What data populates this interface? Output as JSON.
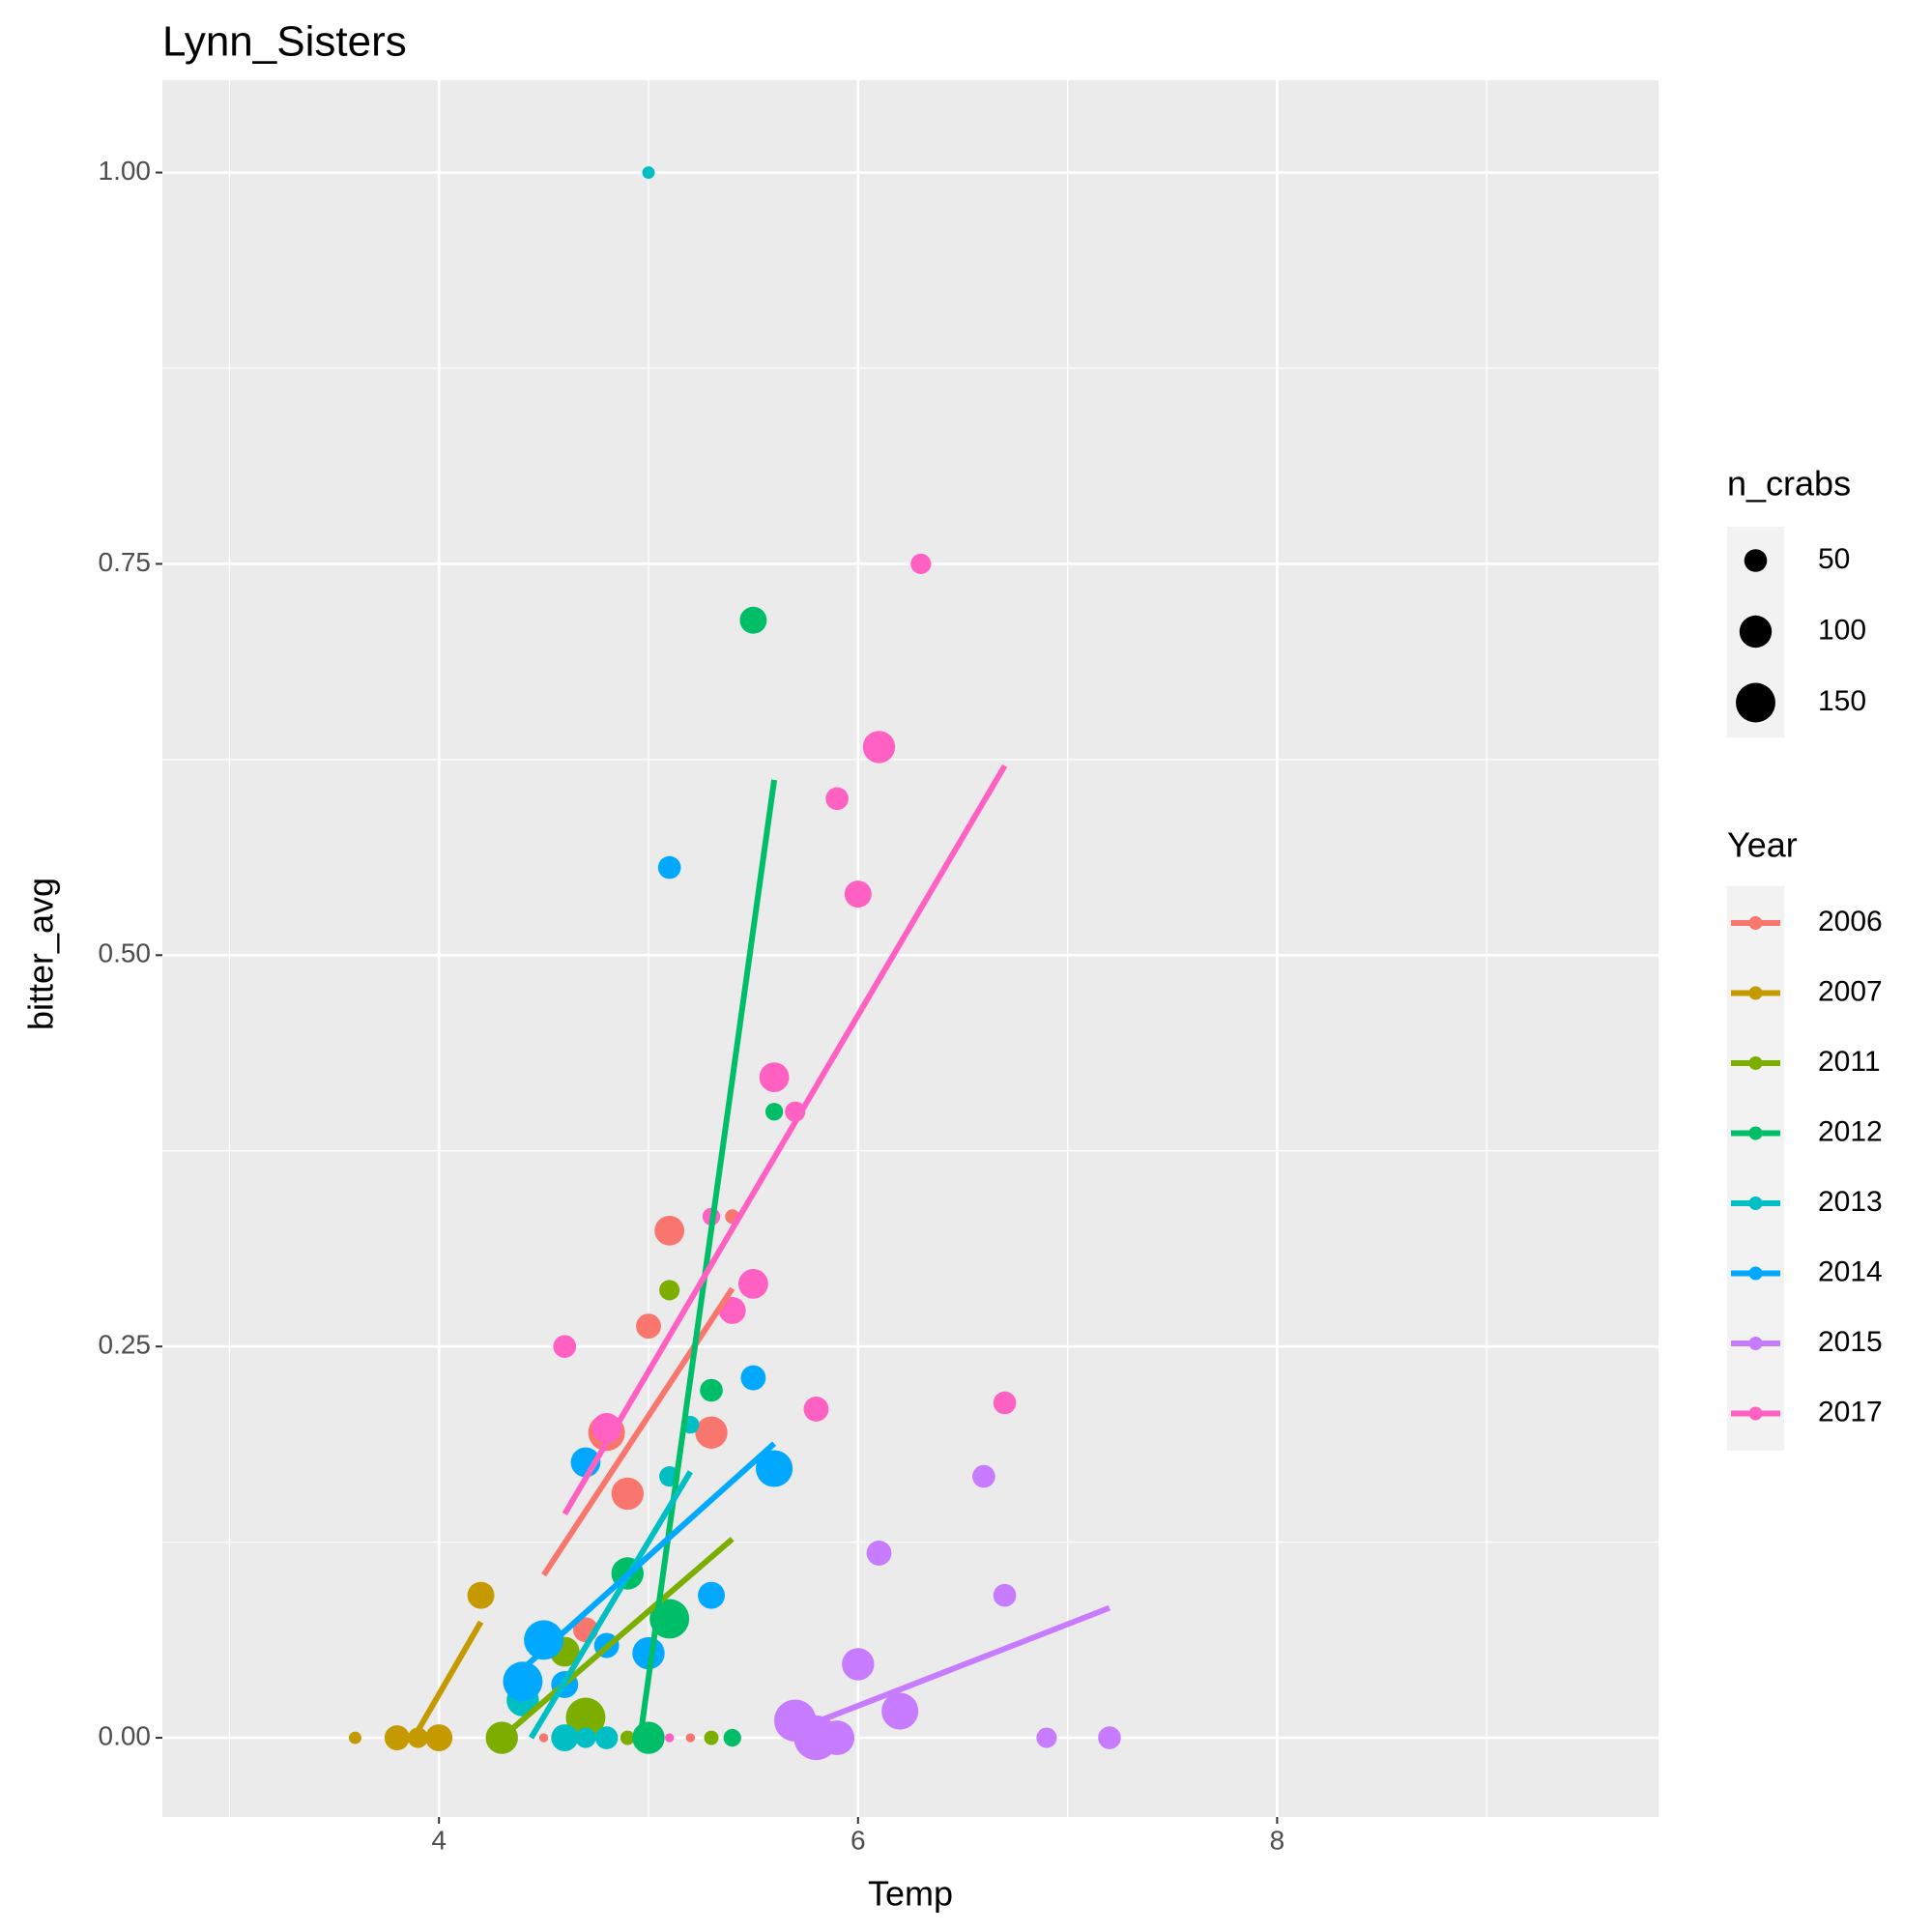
{
  "chart_data": {
    "type": "scatter",
    "title": "Lynn_Sisters",
    "x_label": "Temp",
    "y_label": "bitter_avg",
    "xlim": [
      2.68,
      9.82
    ],
    "ylim": [
      -0.0506,
      1.059
    ],
    "xticks": [
      4,
      6,
      8
    ],
    "x_minor": [
      3,
      5,
      7,
      9
    ],
    "yticks": [
      {
        "value": 0,
        "label": "0.00"
      },
      {
        "value": 0.25,
        "label": "0.25"
      },
      {
        "value": 0.5,
        "label": "0.50"
      },
      {
        "value": 0.75,
        "label": "0.75"
      },
      {
        "value": 1,
        "label": "1.00"
      }
    ],
    "y_minor": [
      0.125,
      0.375,
      0.625,
      0.875
    ],
    "grid": true,
    "size_legend_title": "n_crabs",
    "size_breaks": [
      50,
      100,
      150
    ],
    "legend_title": "Year",
    "series": [
      {
        "name": "2006",
        "color": "#F8766D",
        "x": [
          5.4,
          5.1,
          5.0,
          5.3,
          4.8,
          4.9,
          4.7,
          4.5,
          5.2
        ],
        "y": [
          0.333,
          0.324,
          0.263,
          0.195,
          0.195,
          0.156,
          0.069,
          0,
          0
        ],
        "size": [
          20,
          85,
          60,
          100,
          130,
          100,
          60,
          8,
          8
        ],
        "trend": {
          "x": [
            4.5,
            5.4
          ],
          "y": [
            0.104,
            0.287
          ]
        }
      },
      {
        "name": "2007",
        "color": "#C49A00",
        "x": [
          3.6,
          3.8,
          3.9,
          4.0,
          4.2
        ],
        "y": [
          0,
          0,
          0,
          0,
          0.091
        ],
        "size": [
          15,
          60,
          40,
          70,
          70
        ],
        "trend": {
          "x": [
            3.88,
            4.2
          ],
          "y": [
            0,
            0.074
          ]
        }
      },
      {
        "name": "2011",
        "color": "#7CAE00",
        "x": [
          4.3,
          4.7,
          4.6,
          5.1,
          4.9,
          5.3
        ],
        "y": [
          0,
          0.013,
          0.055,
          0.286,
          0,
          0
        ],
        "size": [
          100,
          150,
          85,
          40,
          20,
          20
        ],
        "trend": {
          "x": [
            4.3,
            5.4
          ],
          "y": [
            0,
            0.127
          ]
        }
      },
      {
        "name": "2012",
        "color": "#00BE67",
        "x": [
          5.0,
          5.1,
          4.9,
          5.3,
          5.6,
          5.5,
          5.4
        ],
        "y": [
          0,
          0.076,
          0.105,
          0.222,
          0.4,
          0.714,
          0
        ],
        "size": [
          100,
          150,
          100,
          50,
          30,
          70,
          30
        ],
        "trend": {
          "x": [
            4.96,
            5.6
          ],
          "y": [
            0,
            0.612
          ]
        }
      },
      {
        "name": "2013",
        "color": "#00BFC4",
        "x": [
          5.0,
          4.6,
          4.7,
          4.8,
          4.4,
          5.1,
          5.2
        ],
        "y": [
          1.0,
          0,
          0,
          0,
          0.024,
          0.167,
          0.2
        ],
        "size": [
          15,
          70,
          40,
          50,
          100,
          40,
          30
        ],
        "trend": {
          "x": [
            4.44,
            5.2
          ],
          "y": [
            0,
            0.17
          ]
        }
      },
      {
        "name": "2014",
        "color": "#00A9FF",
        "x": [
          5.1,
          5.5,
          5.6,
          4.7,
          5.3,
          4.8,
          5.0,
          4.5,
          4.4,
          4.6
        ],
        "y": [
          0.556,
          0.23,
          0.172,
          0.176,
          0.091,
          0.059,
          0.054,
          0.0625,
          0.036,
          0.034
        ],
        "size": [
          50,
          60,
          130,
          85,
          70,
          60,
          100,
          150,
          150,
          70
        ],
        "trend": {
          "x": [
            4.4,
            5.6
          ],
          "y": [
            0.044,
            0.188
          ]
        }
      },
      {
        "name": "2015",
        "color": "#C77CFF",
        "x": [
          5.7,
          5.8,
          5.9,
          6.0,
          6.2,
          6.1,
          6.6,
          6.7,
          6.9,
          7.2
        ],
        "y": [
          0.011,
          0,
          0,
          0.047,
          0.017,
          0.118,
          0.167,
          0.091,
          0,
          0
        ],
        "size": [
          170,
          190,
          115,
          100,
          130,
          60,
          50,
          50,
          40,
          50
        ],
        "trend": {
          "x": [
            5.8,
            7.2
          ],
          "y": [
            0.01,
            0.083
          ]
        }
      },
      {
        "name": "2017",
        "color": "#FF61C3",
        "x": [
          6.3,
          6.1,
          5.9,
          6.0,
          5.6,
          5.7,
          5.5,
          5.4,
          5.3,
          4.6,
          5.8,
          6.7,
          4.8,
          5.1
        ],
        "y": [
          0.75,
          0.633,
          0.6,
          0.539,
          0.422,
          0.4,
          0.29,
          0.273,
          0.333,
          0.25,
          0.21,
          0.214,
          0.198,
          0
        ],
        "size": [
          40,
          100,
          50,
          70,
          85,
          40,
          85,
          70,
          30,
          50,
          60,
          50,
          85,
          8
        ],
        "trend": {
          "x": [
            4.6,
            6.7
          ],
          "y": [
            0.143,
            0.621
          ]
        }
      }
    ]
  }
}
